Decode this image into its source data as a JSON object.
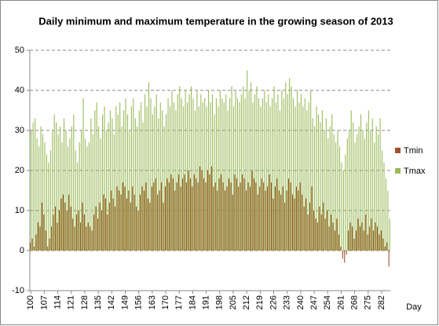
{
  "chart_data": {
    "type": "bar",
    "title": "Daily minimum and maximum temperature in the growing season of 2013",
    "x_label": "Day",
    "x": [
      100,
      101,
      102,
      103,
      104,
      105,
      106,
      107,
      108,
      109,
      110,
      111,
      112,
      113,
      114,
      115,
      116,
      117,
      118,
      119,
      120,
      121,
      122,
      123,
      124,
      125,
      126,
      127,
      128,
      129,
      130,
      131,
      132,
      133,
      134,
      135,
      136,
      137,
      138,
      139,
      140,
      141,
      142,
      143,
      144,
      145,
      146,
      147,
      148,
      149,
      150,
      151,
      152,
      153,
      154,
      155,
      156,
      157,
      158,
      159,
      160,
      161,
      162,
      163,
      164,
      165,
      166,
      167,
      168,
      169,
      170,
      171,
      172,
      173,
      174,
      175,
      176,
      177,
      178,
      179,
      180,
      181,
      182,
      183,
      184,
      185,
      186,
      187,
      188,
      189,
      190,
      191,
      192,
      193,
      194,
      195,
      196,
      197,
      198,
      199,
      200,
      201,
      202,
      203,
      204,
      205,
      206,
      207,
      208,
      209,
      210,
      211,
      212,
      213,
      214,
      215,
      216,
      217,
      218,
      219,
      220,
      221,
      222,
      223,
      224,
      225,
      226,
      227,
      228,
      229,
      230,
      231,
      232,
      233,
      234,
      235,
      236,
      237,
      238,
      239,
      240,
      241,
      242,
      243,
      244,
      245,
      246,
      247,
      248,
      249,
      250,
      251,
      252,
      253,
      254,
      255,
      256,
      257,
      258,
      259,
      260,
      261,
      262,
      263,
      264,
      265,
      266,
      267,
      268,
      269,
      270,
      271,
      272,
      273,
      274,
      275,
      276,
      277,
      278,
      279,
      280,
      281,
      282,
      283,
      284,
      285,
      286
    ],
    "series": [
      {
        "name": "Tmin",
        "color": "#a0522d",
        "values": [
          2,
          3,
          1,
          4,
          7,
          6,
          12,
          9,
          5,
          1,
          3,
          6,
          9,
          11,
          7,
          10,
          13,
          14,
          12,
          10,
          14,
          11,
          8,
          6,
          9,
          10,
          7,
          12,
          9,
          6,
          7,
          6,
          5,
          9,
          11,
          8,
          12,
          10,
          14,
          13,
          9,
          12,
          15,
          13,
          11,
          16,
          15,
          14,
          17,
          16,
          13,
          15,
          12,
          16,
          14,
          11,
          10,
          14,
          16,
          15,
          17,
          13,
          12,
          16,
          17,
          18,
          14,
          15,
          17,
          12,
          16,
          18,
          17,
          19,
          18,
          15,
          17,
          19,
          16,
          18,
          19,
          17,
          20,
          18,
          16,
          19,
          18,
          17,
          21,
          20,
          18,
          17,
          20,
          19,
          21,
          16,
          17,
          15,
          18,
          19,
          17,
          15,
          16,
          18,
          17,
          14,
          19,
          18,
          16,
          17,
          19,
          18,
          15,
          17,
          16,
          20,
          18,
          17,
          14,
          16,
          18,
          17,
          15,
          16,
          19,
          17,
          13,
          16,
          18,
          15,
          14,
          16,
          12,
          15,
          18,
          17,
          14,
          13,
          16,
          15,
          17,
          14,
          11,
          13,
          9,
          12,
          16,
          10,
          8,
          7,
          11,
          9,
          12,
          8,
          10,
          6,
          9,
          7,
          5,
          8,
          4,
          1,
          -2,
          -3,
          -1,
          5,
          7,
          6,
          3,
          5,
          8,
          6,
          7,
          5,
          9,
          4,
          6,
          8,
          5,
          7,
          6,
          4,
          5,
          3,
          1,
          2,
          -4
        ]
      },
      {
        "name": "Tmax",
        "color": "#9bbb59",
        "values": [
          30,
          32,
          33,
          28,
          26,
          31,
          29,
          27,
          24,
          22,
          25,
          30,
          34,
          32,
          29,
          31,
          27,
          33,
          30,
          26,
          28,
          31,
          34,
          25,
          22,
          27,
          30,
          38,
          28,
          26,
          27,
          33,
          29,
          35,
          37,
          31,
          28,
          34,
          36,
          30,
          32,
          35,
          33,
          29,
          36,
          34,
          37,
          31,
          35,
          38,
          34,
          30,
          36,
          38,
          33,
          31,
          35,
          37,
          32,
          39,
          36,
          42,
          38,
          34,
          36,
          39,
          33,
          37,
          35,
          31,
          34,
          38,
          36,
          40,
          37,
          35,
          39,
          41,
          38,
          36,
          40,
          37,
          39,
          41,
          38,
          35,
          40,
          36,
          39,
          37,
          38,
          36,
          40,
          37,
          39,
          34,
          38,
          36,
          40,
          38,
          37,
          39,
          35,
          38,
          41,
          36,
          40,
          38,
          37,
          39,
          41,
          38,
          45,
          40,
          42,
          37,
          39,
          41,
          38,
          36,
          38,
          40,
          37,
          39,
          36,
          38,
          41,
          37,
          39,
          35,
          40,
          38,
          42,
          39,
          43,
          41,
          38,
          36,
          40,
          37,
          39,
          36,
          38,
          35,
          37,
          40,
          33,
          31,
          36,
          34,
          32,
          35,
          30,
          33,
          28,
          31,
          34,
          29,
          27,
          30,
          26,
          22,
          20,
          24,
          28,
          30,
          35,
          32,
          27,
          29,
          31,
          34,
          30,
          28,
          32,
          35,
          30,
          33,
          27,
          31,
          29,
          33,
          25,
          22,
          18,
          15,
          8
        ]
      }
    ],
    "xticks": [
      100,
      107,
      114,
      121,
      128,
      135,
      142,
      149,
      156,
      163,
      170,
      177,
      184,
      191,
      198,
      205,
      212,
      219,
      226,
      233,
      240,
      247,
      254,
      261,
      268,
      275,
      282
    ],
    "ylim": [
      -10,
      50
    ],
    "yticks": [
      -10,
      0,
      10,
      20,
      30,
      40,
      50
    ],
    "grid": true,
    "legend": "right"
  }
}
